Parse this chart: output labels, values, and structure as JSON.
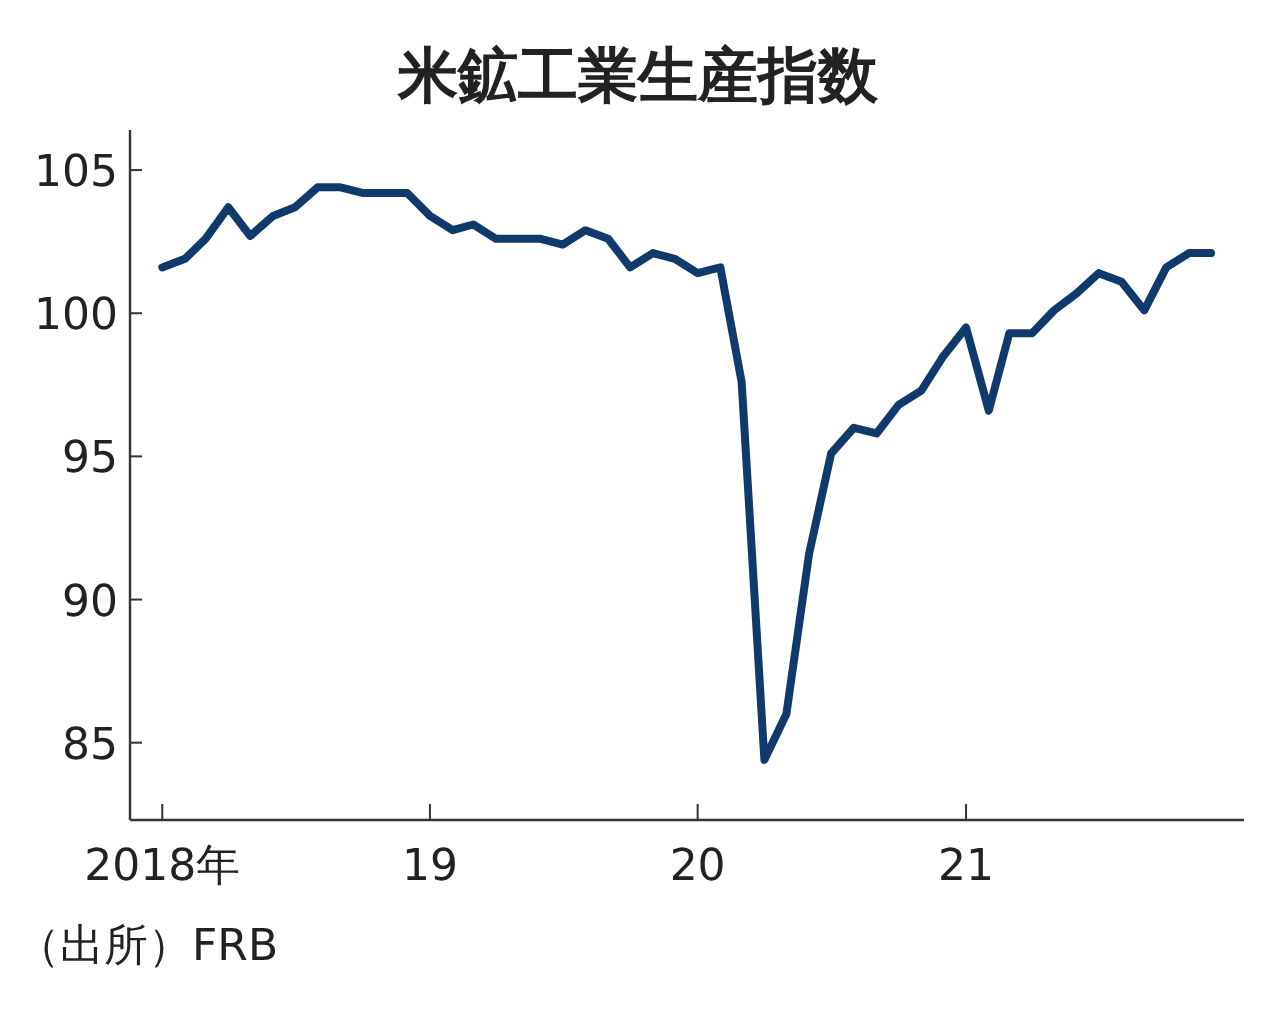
{
  "chart_data": {
    "type": "line",
    "title": "米鉱工業生産指数",
    "annotations": [
      "（出所）FRB"
    ],
    "x": [
      "2018-01",
      "2018-02",
      "2018-03",
      "2018-04",
      "2018-05",
      "2018-06",
      "2018-07",
      "2018-08",
      "2018-09",
      "2018-10",
      "2018-11",
      "2018-12",
      "2019-01",
      "2019-02",
      "2019-03",
      "2019-04",
      "2019-05",
      "2019-06",
      "2019-07",
      "2019-08",
      "2019-09",
      "2019-10",
      "2019-11",
      "2019-12",
      "2020-01",
      "2020-02",
      "2020-03",
      "2020-04",
      "2020-05",
      "2020-06",
      "2020-07",
      "2020-08",
      "2020-09",
      "2020-10",
      "2020-11",
      "2020-12",
      "2021-01",
      "2021-02",
      "2021-03",
      "2021-04",
      "2021-05",
      "2021-06",
      "2021-07",
      "2021-08",
      "2021-09",
      "2021-10",
      "2021-11",
      "2021-12"
    ],
    "series": [
      {
        "color": "#0f3a6b",
        "values": [
          101.6,
          101.9,
          102.6,
          103.7,
          102.7,
          103.4,
          103.7,
          104.4,
          104.4,
          104.2,
          104.2,
          104.2,
          103.4,
          102.9,
          103.1,
          102.6,
          102.6,
          102.6,
          102.4,
          102.9,
          102.6,
          101.6,
          102.1,
          101.9,
          101.4,
          101.6,
          97.6,
          84.4,
          86.0,
          91.6,
          95.1,
          96.0,
          95.8,
          96.8,
          97.3,
          98.5,
          99.5,
          96.6,
          99.3,
          99.3,
          100.1,
          100.7,
          101.4,
          101.1,
          100.1,
          101.6,
          102.1,
          102.1
        ]
      }
    ],
    "xlim": [
      "2017-11-18",
      "2022-01-15"
    ],
    "ylim": [
      82.3,
      106.4
    ],
    "xticks": [
      {
        "value": "2018-01",
        "label": "2018年"
      },
      {
        "value": "2019-01",
        "label": "19"
      },
      {
        "value": "2020-01",
        "label": "20"
      },
      {
        "value": "2021-01",
        "label": "21"
      }
    ],
    "yticks": [
      85,
      90,
      95,
      100,
      105
    ],
    "grid": false,
    "line_style": "solid"
  }
}
